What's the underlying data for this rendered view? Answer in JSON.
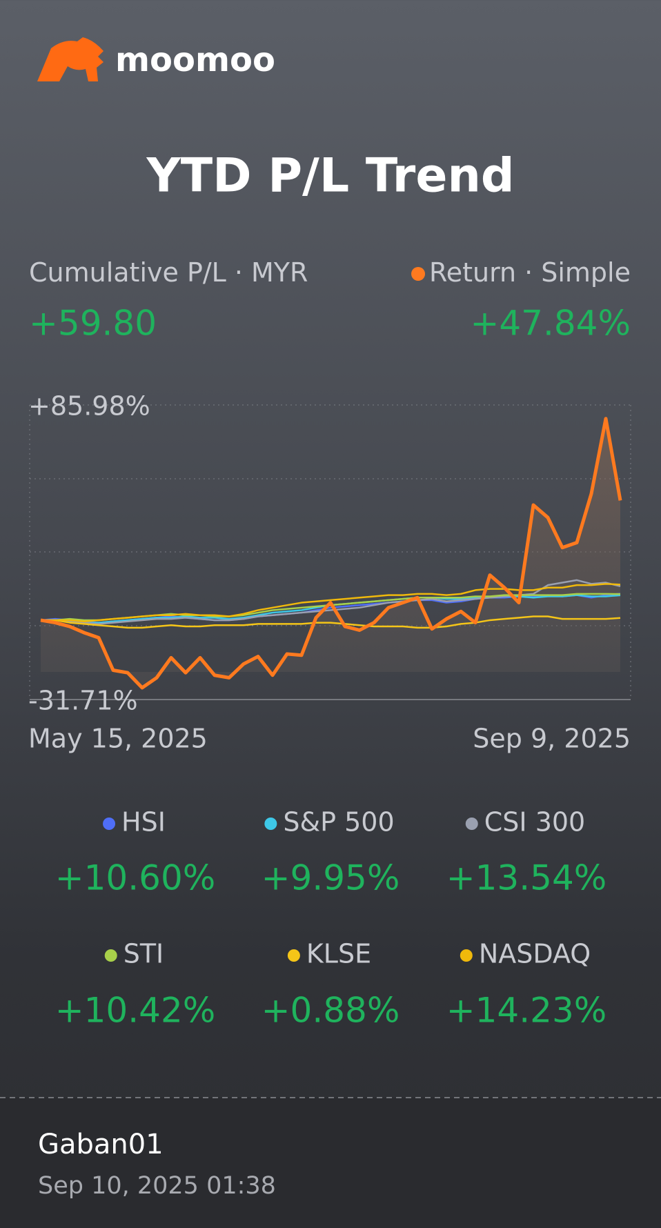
{
  "brand": "moomoo",
  "title": "YTD P/L Trend",
  "summary": {
    "left_label": "Cumulative P/L",
    "separator": "·",
    "currency": "MYR",
    "left_value": "+59.80",
    "mode": "Simple"
  },
  "chart_data": {
    "type": "line",
    "ylim": [
      -31.71,
      85.98
    ],
    "yticks": [
      {
        "value": 85.98,
        "label": "+85.98%"
      },
      {
        "value": -31.71,
        "label": "-31.71%"
      }
    ],
    "grid": true,
    "categories": [
      "May 15, 2025",
      null,
      null,
      null,
      null,
      null,
      null,
      null,
      null,
      null,
      null,
      null,
      null,
      null,
      null,
      null,
      null,
      null,
      null,
      null,
      null,
      null,
      null,
      null,
      null,
      null,
      null,
      null,
      null,
      null,
      null,
      null,
      null,
      null,
      null,
      null,
      null,
      null,
      null,
      null,
      "Sep 9, 2025"
    ],
    "series": [
      {
        "name": "Return",
        "color": "#ff7a1f",
        "total_label": "+47.84%",
        "values": [
          0,
          -1,
          -2.5,
          -5,
          -7,
          -20,
          -21,
          -27,
          -23,
          -15,
          -21,
          -15,
          -22,
          -23,
          -17.5,
          -14.5,
          -22,
          -13.5,
          -14,
          1,
          7,
          -2.5,
          -4,
          -1,
          5,
          7,
          9,
          -3.5,
          0.5,
          3.5,
          -1,
          18,
          13,
          7,
          46,
          41,
          29,
          31,
          50.5,
          80.5,
          47.84
        ]
      },
      {
        "name": "HSI",
        "color": "#4f6ef7",
        "total_label": "+10.60%",
        "values": [
          0,
          0.5,
          0,
          -0.5,
          -1,
          -0.5,
          0,
          0.5,
          1,
          1.5,
          1,
          0.5,
          0,
          0,
          0.5,
          1.5,
          2,
          2.5,
          3,
          4,
          5,
          5.5,
          6,
          6.5,
          7,
          7.5,
          8,
          8,
          7,
          7.5,
          8.5,
          9,
          9,
          9.5,
          9.5,
          10,
          9.5,
          10,
          9,
          10,
          10.6
        ]
      },
      {
        "name": "S&P 500",
        "color": "#3ec8e8",
        "total_label": "+9.95%",
        "values": [
          0,
          0,
          -0.5,
          -1,
          -1,
          -0.5,
          0,
          0.5,
          1,
          1,
          1.5,
          1,
          1,
          0.5,
          1,
          2,
          3,
          3.5,
          4,
          5,
          6,
          6.5,
          7,
          7.5,
          8,
          8.5,
          9,
          9,
          8.5,
          8.5,
          9,
          9,
          9.5,
          9.5,
          9,
          9.5,
          9.5,
          10,
          9.5,
          9.5,
          9.95
        ]
      },
      {
        "name": "CSI 300",
        "color": "#9aa0b0",
        "total_label": "+13.54%",
        "values": [
          0,
          0,
          -0.5,
          -1,
          -1.5,
          -1,
          -0.5,
          0,
          0.5,
          0.5,
          1,
          0.5,
          0,
          0,
          0.5,
          1.5,
          2,
          2.5,
          3,
          3.5,
          4,
          4.5,
          5,
          6,
          7,
          7.5,
          8,
          8.5,
          7.5,
          8,
          8.5,
          9,
          9.5,
          10,
          10.5,
          14,
          15,
          16,
          14.5,
          15,
          13.54
        ]
      },
      {
        "name": "STI",
        "color": "#a8d04a",
        "total_label": "+10.42%",
        "values": [
          0,
          0,
          0.5,
          0,
          0,
          0.5,
          1,
          1.5,
          2,
          2.5,
          2,
          2,
          1.5,
          1.5,
          2,
          3,
          4,
          4.5,
          5,
          5.5,
          6,
          6.5,
          7,
          7.5,
          8,
          8.5,
          9,
          9,
          9,
          9,
          9.5,
          9.5,
          10,
          10,
          10,
          10,
          10,
          10.5,
          10.5,
          10.5,
          10.42
        ]
      },
      {
        "name": "KLSE",
        "color": "#f5c518",
        "total_label": "+0.88%",
        "values": [
          0,
          0,
          -1,
          -1.5,
          -2,
          -2.5,
          -3,
          -3,
          -2.5,
          -2,
          -2.5,
          -2.5,
          -2,
          -2,
          -2,
          -1.5,
          -1.5,
          -1.5,
          -1.5,
          -1,
          -1,
          -1.5,
          -2,
          -2.5,
          -2.5,
          -2.5,
          -3,
          -3,
          -2.5,
          -1.5,
          -1,
          0,
          0.5,
          1,
          1.5,
          1.5,
          0.5,
          0.5,
          0.5,
          0.5,
          0.88
        ]
      },
      {
        "name": "NASDAQ",
        "color": "#f0b90b",
        "total_label": "+14.23%",
        "values": [
          0,
          0,
          0,
          -0.5,
          0,
          0.5,
          1,
          1.5,
          2,
          2,
          2.5,
          2,
          2,
          1.5,
          2.5,
          4,
          5,
          6,
          7,
          7.5,
          8,
          8.5,
          9,
          9.5,
          10,
          10,
          10.5,
          10.5,
          10,
          10.5,
          12,
          12.5,
          12.5,
          12,
          12,
          13,
          13,
          14,
          14,
          14.5,
          14.23
        ]
      }
    ]
  },
  "footer": {
    "user": "Gaban01",
    "timestamp": "Sep 10, 2025 01:38"
  }
}
